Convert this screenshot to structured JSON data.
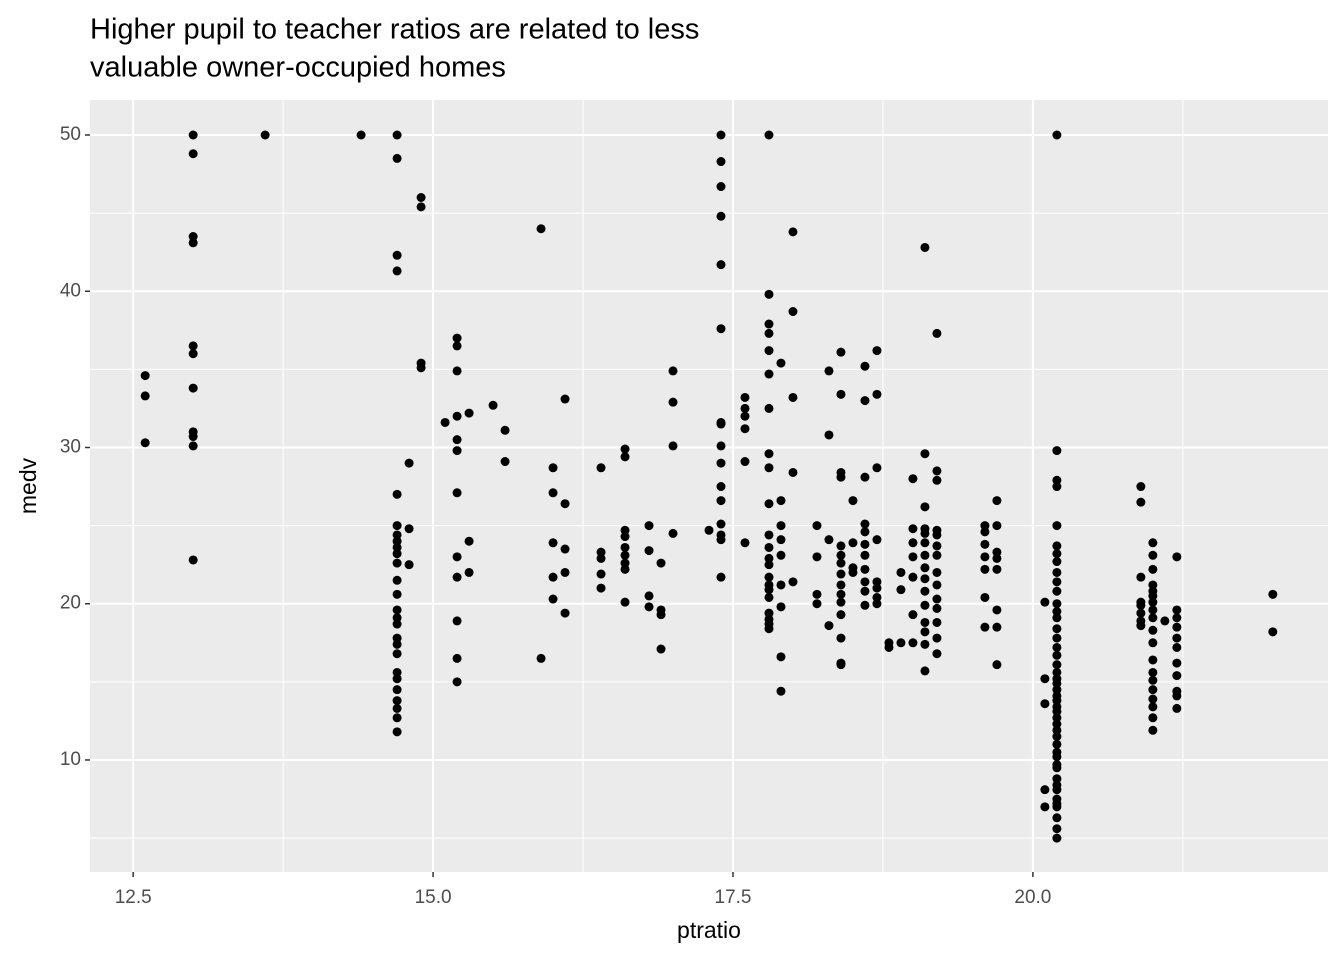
{
  "chart_data": {
    "type": "scatter",
    "title": [
      "Higher pupil to teacher ratios are related to less",
      "valuable owner-occupied homes"
    ],
    "x_label": "ptratio",
    "y_label": "medv",
    "xlim": [
      12.14,
      22.46
    ],
    "ylim": [
      2.83,
      52.24
    ],
    "xticks": [
      12.5,
      {
        "value": 15,
        "label": "15.0"
      },
      17.5,
      {
        "value": 20,
        "label": "20.0"
      }
    ],
    "yticks": [
      10,
      20,
      30,
      40,
      50
    ],
    "x_minor_ticks": [
      13.75,
      16.25,
      18.75,
      21.25
    ],
    "y_minor_ticks": [
      5,
      15,
      25,
      35,
      45
    ],
    "grid": true,
    "color": "#000000",
    "x": [
      12.6,
      12.6,
      12.6,
      13.0,
      13.0,
      13.0,
      13.0,
      13.0,
      13.0,
      13.0,
      13.0,
      13.0,
      13.0,
      13.0,
      13.6,
      14.4,
      14.7,
      14.7,
      14.7,
      14.7,
      14.7,
      14.7,
      14.7,
      14.7,
      14.7,
      14.7,
      14.7,
      14.7,
      14.7,
      14.7,
      14.7,
      14.7,
      14.7,
      14.7,
      14.7,
      14.7,
      14.7,
      14.7,
      14.7,
      14.7,
      14.7,
      14.7,
      14.8,
      14.8,
      14.8,
      14.9,
      14.9,
      14.9,
      14.9,
      15.1,
      15.2,
      15.2,
      15.2,
      15.2,
      15.2,
      15.2,
      15.2,
      15.2,
      15.2,
      15.2,
      15.2,
      15.2,
      15.3,
      15.3,
      15.3,
      15.5,
      15.6,
      15.6,
      15.9,
      15.9,
      16.0,
      16.0,
      16.0,
      16.0,
      16.0,
      16.1,
      16.1,
      16.1,
      16.1,
      16.1,
      16.4,
      16.4,
      16.4,
      16.4,
      16.4,
      16.6,
      16.6,
      16.6,
      16.6,
      16.6,
      16.6,
      16.6,
      16.6,
      16.6,
      16.8,
      16.8,
      16.8,
      16.8,
      16.9,
      16.9,
      16.9,
      16.9,
      17.0,
      17.0,
      17.0,
      17.0,
      17.3,
      17.4,
      17.4,
      17.4,
      17.4,
      17.4,
      17.4,
      17.4,
      17.4,
      17.4,
      17.4,
      17.4,
      17.4,
      17.4,
      17.4,
      17.4,
      17.4,
      17.6,
      17.6,
      17.6,
      17.6,
      17.6,
      17.6,
      17.8,
      17.8,
      17.8,
      17.8,
      17.8,
      17.8,
      17.8,
      17.8,
      17.8,
      17.8,
      17.8,
      17.8,
      17.8,
      17.8,
      17.8,
      17.8,
      17.8,
      17.8,
      17.8,
      17.8,
      17.8,
      17.8,
      17.9,
      17.9,
      17.9,
      17.9,
      17.9,
      17.9,
      17.9,
      17.9,
      17.9,
      18.0,
      18.0,
      18.0,
      18.0,
      18.0,
      18.2,
      18.2,
      18.2,
      18.2,
      18.3,
      18.3,
      18.3,
      18.3,
      18.4,
      18.4,
      18.4,
      18.4,
      18.4,
      18.4,
      18.4,
      18.4,
      18.4,
      18.4,
      18.4,
      18.4,
      18.4,
      18.4,
      18.4,
      18.5,
      18.5,
      18.5,
      18.5,
      18.6,
      18.6,
      18.6,
      18.6,
      18.6,
      18.6,
      18.6,
      18.6,
      18.6,
      18.6,
      18.6,
      18.7,
      18.7,
      18.7,
      18.7,
      18.7,
      18.7,
      18.7,
      18.7,
      18.8,
      18.8,
      18.9,
      18.9,
      18.9,
      19.0,
      19.0,
      19.0,
      19.0,
      19.0,
      19.0,
      19.0,
      19.1,
      19.1,
      19.1,
      19.1,
      19.1,
      19.1,
      19.1,
      19.1,
      19.1,
      19.1,
      19.1,
      19.1,
      19.1,
      19.1,
      19.1,
      19.2,
      19.2,
      19.2,
      19.2,
      19.2,
      19.2,
      19.2,
      19.2,
      19.2,
      19.2,
      19.2,
      19.2,
      19.2,
      19.2,
      19.6,
      19.6,
      19.6,
      19.6,
      19.6,
      19.6,
      19.6,
      19.7,
      19.7,
      19.7,
      19.7,
      19.7,
      19.7,
      19.7,
      19.7,
      20.1,
      20.1,
      20.1,
      20.1,
      20.1,
      20.2,
      20.2,
      20.2,
      20.2,
      20.2,
      20.2,
      20.2,
      20.2,
      20.2,
      20.2,
      20.2,
      20.2,
      20.2,
      20.2,
      20.2,
      20.2,
      20.2,
      20.2,
      20.2,
      20.2,
      20.2,
      20.2,
      20.2,
      20.2,
      20.2,
      20.2,
      20.2,
      20.2,
      20.2,
      20.2,
      20.2,
      20.2,
      20.2,
      20.2,
      20.2,
      20.2,
      20.2,
      20.2,
      20.2,
      20.2,
      20.2,
      20.2,
      20.2,
      20.2,
      20.2,
      20.9,
      20.9,
      20.9,
      20.9,
      20.9,
      20.9,
      20.9,
      20.9,
      21.0,
      21.0,
      21.0,
      21.0,
      21.0,
      21.0,
      21.0,
      21.0,
      21.0,
      21.0,
      21.0,
      21.0,
      21.0,
      21.0,
      21.0,
      21.0,
      21.0,
      21.0,
      21.0,
      21.1,
      21.2,
      21.2,
      21.2,
      21.2,
      21.2,
      21.2,
      21.2,
      21.2,
      21.2,
      21.2,
      21.2,
      22.0,
      22.0
    ],
    "values": [
      34.6,
      33.3,
      30.3,
      50,
      48.8,
      43.5,
      43.1,
      36.5,
      36.0,
      33.8,
      31.0,
      30.7,
      30.1,
      22.8,
      50,
      50,
      50,
      48.5,
      42.3,
      41.3,
      27.0,
      25.0,
      24.4,
      24.0,
      23.6,
      23.2,
      22.6,
      21.5,
      20.6,
      19.6,
      19.1,
      18.7,
      17.8,
      17.4,
      16.8,
      15.6,
      15.2,
      14.5,
      13.8,
      13.3,
      12.7,
      11.8,
      29.0,
      24.8,
      22.5,
      46.0,
      45.4,
      35.4,
      35.1,
      31.6,
      37.0,
      36.5,
      34.9,
      32.0,
      30.5,
      29.8,
      27.1,
      23.0,
      21.7,
      18.9,
      16.5,
      15.0,
      32.2,
      24.0,
      22.0,
      32.7,
      31.1,
      29.1,
      44.0,
      16.5,
      28.7,
      27.1,
      23.9,
      21.7,
      20.3,
      33.1,
      26.4,
      23.5,
      22.0,
      19.4,
      28.7,
      23.3,
      22.9,
      21.9,
      21.0,
      29.9,
      29.4,
      24.7,
      24.3,
      23.6,
      23.1,
      22.6,
      22.2,
      20.1,
      25.0,
      23.4,
      20.5,
      19.8,
      22.6,
      19.6,
      19.3,
      17.1,
      34.9,
      32.9,
      30.1,
      24.5,
      24.7,
      50,
      48.3,
      46.7,
      44.8,
      41.7,
      37.6,
      31.6,
      31.5,
      30.1,
      29.0,
      27.5,
      26.6,
      25.1,
      24.4,
      24.1,
      21.7,
      33.2,
      32.5,
      32.0,
      31.2,
      29.1,
      23.9,
      50,
      39.8,
      37.9,
      37.3,
      36.2,
      34.7,
      32.5,
      29.6,
      28.7,
      26.4,
      24.4,
      23.6,
      22.9,
      22.5,
      21.7,
      21.2,
      20.9,
      20.4,
      19.4,
      19.0,
      18.7,
      18.4,
      35.4,
      26.6,
      25.0,
      24.1,
      23.1,
      21.2,
      19.8,
      16.6,
      14.4,
      43.8,
      38.7,
      33.2,
      28.4,
      21.4,
      25.0,
      23.0,
      20.6,
      20.0,
      34.9,
      30.8,
      24.1,
      18.6,
      36.1,
      33.4,
      28.4,
      28.1,
      23.7,
      23.1,
      22.6,
      21.9,
      21.2,
      20.6,
      20.1,
      19.3,
      17.8,
      16.2,
      16.1,
      26.6,
      23.9,
      22.3,
      22.0,
      35.2,
      33.0,
      28.1,
      25.1,
      24.6,
      23.8,
      23.1,
      22.2,
      21.4,
      20.8,
      19.9,
      36.2,
      33.4,
      28.7,
      24.1,
      21.4,
      21.0,
      20.4,
      20.0,
      17.5,
      17.2,
      22.0,
      20.9,
      17.5,
      28.0,
      24.8,
      23.9,
      23.0,
      21.7,
      19.3,
      17.5,
      42.8,
      29.6,
      26.2,
      24.8,
      24.5,
      23.9,
      23.1,
      22.3,
      21.6,
      20.8,
      19.9,
      18.8,
      18.2,
      17.4,
      15.7,
      37.3,
      28.5,
      27.9,
      24.7,
      24.4,
      23.7,
      23.1,
      22.0,
      21.2,
      20.3,
      19.7,
      18.8,
      17.8,
      16.8,
      25.0,
      24.6,
      23.8,
      23.0,
      22.2,
      20.4,
      18.5,
      26.6,
      25.0,
      23.3,
      22.9,
      22.2,
      19.6,
      18.5,
      16.1,
      20.1,
      15.2,
      13.6,
      8.1,
      7.0,
      50,
      29.8,
      27.9,
      27.5,
      25.0,
      23.7,
      23.2,
      22.7,
      22.0,
      21.4,
      20.8,
      20.0,
      19.5,
      19.1,
      18.4,
      17.8,
      17.2,
      16.7,
      16.1,
      15.6,
      15.2,
      14.9,
      14.5,
      14.1,
      13.8,
      13.4,
      13.1,
      12.7,
      12.3,
      11.9,
      11.5,
      11.0,
      10.5,
      10.2,
      9.7,
      9.5,
      8.8,
      8.4,
      8.1,
      7.5,
      7.2,
      7.0,
      6.3,
      5.6,
      5.0,
      27.5,
      26.5,
      21.7,
      20.1,
      19.9,
      19.4,
      18.9,
      18.6,
      23.9,
      23.1,
      22.2,
      21.2,
      20.8,
      20.5,
      20.1,
      19.6,
      19.1,
      18.3,
      17.5,
      16.4,
      15.6,
      15.1,
      14.5,
      13.9,
      13.4,
      12.7,
      11.9,
      18.9,
      23.0,
      19.6,
      19.1,
      18.5,
      17.8,
      17.2,
      16.2,
      15.4,
      14.4,
      14.1,
      13.3,
      20.6,
      18.2
    ]
  }
}
